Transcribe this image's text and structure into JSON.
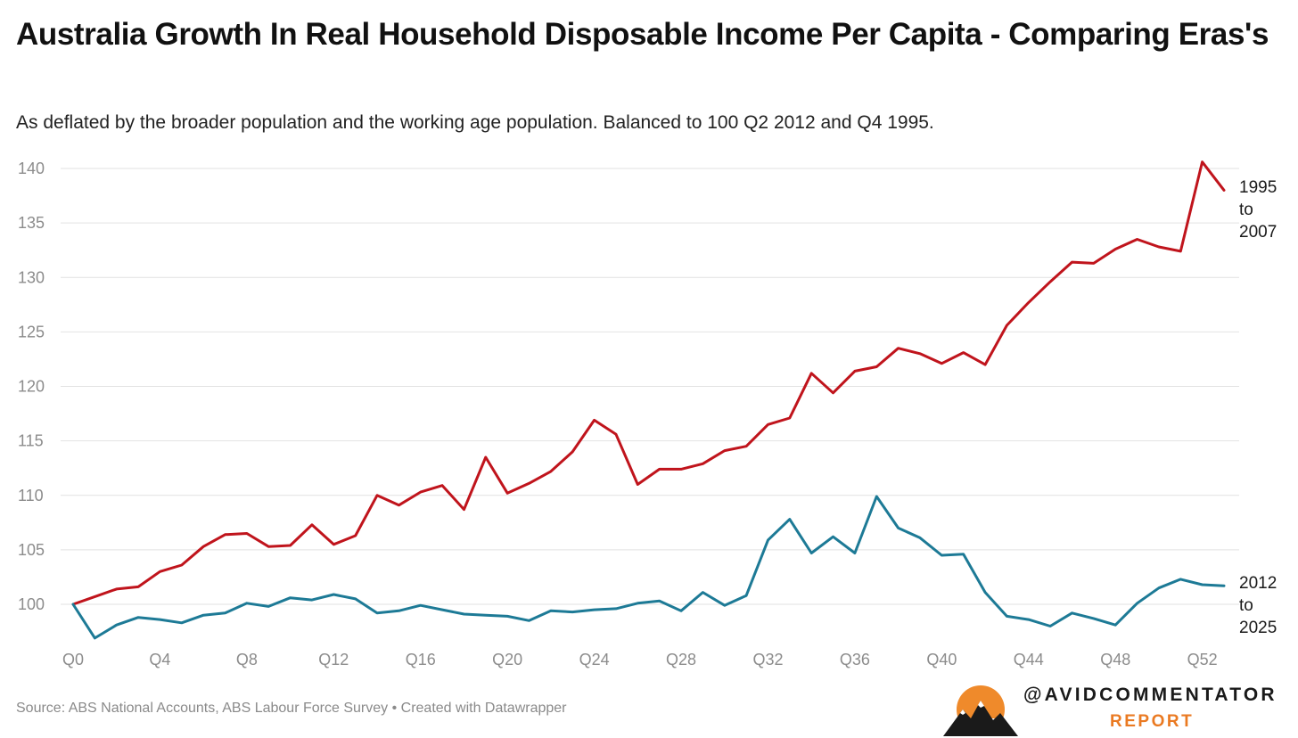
{
  "header": {
    "title": "Australia Growth In Real Household Disposable Income Per Capita - Comparing Eras's",
    "subtitle": "As deflated by the broader population and the working age population. Balanced to 100 Q2 2012 and Q4 1995."
  },
  "footer": {
    "source": "Source: ABS National Accounts, ABS Labour Force Survey",
    "separator": "•",
    "credit": "Created with Datawrapper"
  },
  "branding": {
    "handle": "@AVIDCOMMENTATOR",
    "report": "REPORT",
    "icon": "sun-mountain-logo-icon",
    "accent_color": "#ea7a22"
  },
  "chart_data": {
    "type": "line",
    "x_tick_labels": [
      "Q0",
      "Q4",
      "Q8",
      "Q12",
      "Q16",
      "Q20",
      "Q24",
      "Q28",
      "Q32",
      "Q36",
      "Q40",
      "Q44",
      "Q48",
      "Q52"
    ],
    "y_tick_labels": [
      "100",
      "105",
      "110",
      "115",
      "120",
      "125",
      "130",
      "135",
      "140"
    ],
    "y_ticks": [
      100,
      105,
      110,
      115,
      120,
      125,
      130,
      135,
      140
    ],
    "xlim": [
      0,
      53
    ],
    "ylim": [
      97,
      141
    ],
    "grid": true,
    "legend": "direct-labels-right",
    "series": [
      {
        "label_lines": [
          "1995",
          "to",
          "2007"
        ],
        "color": "#c0141c",
        "x": [
          0,
          1,
          2,
          3,
          4,
          5,
          6,
          7,
          8,
          9,
          10,
          11,
          12,
          13,
          14,
          15,
          16,
          17,
          18,
          19,
          20,
          21,
          22,
          23,
          24,
          25,
          26,
          27,
          28,
          29,
          30,
          31,
          32,
          33,
          34,
          35,
          36,
          37,
          38,
          39,
          40,
          41,
          42,
          43,
          44,
          45,
          46,
          47,
          48,
          49,
          50,
          51,
          52,
          53
        ],
        "values": [
          100.0,
          100.7,
          101.4,
          101.6,
          103.0,
          103.6,
          105.3,
          106.4,
          106.5,
          105.3,
          105.4,
          107.3,
          105.5,
          106.3,
          110.0,
          109.1,
          110.3,
          110.9,
          108.7,
          113.5,
          110.2,
          111.1,
          112.2,
          114.0,
          116.9,
          115.6,
          111.0,
          112.4,
          112.4,
          112.9,
          114.1,
          114.5,
          116.5,
          117.1,
          121.2,
          119.4,
          121.4,
          121.8,
          123.5,
          123.0,
          122.1,
          123.1,
          122.0,
          125.6,
          127.7,
          129.6,
          131.4,
          131.3,
          132.6,
          133.5,
          132.8,
          132.4,
          140.6,
          138.0
        ]
      },
      {
        "label_lines": [
          "2012",
          "to",
          "2025"
        ],
        "color": "#1d7a96",
        "x": [
          0,
          1,
          2,
          3,
          4,
          5,
          6,
          7,
          8,
          9,
          10,
          11,
          12,
          13,
          14,
          15,
          16,
          17,
          18,
          19,
          20,
          21,
          22,
          23,
          24,
          25,
          26,
          27,
          28,
          29,
          30,
          31,
          32,
          33,
          34,
          35,
          36,
          37,
          38,
          39,
          40,
          41,
          42,
          43,
          44,
          45,
          46,
          47,
          48,
          49,
          50,
          51,
          52,
          53
        ],
        "values": [
          100.0,
          96.9,
          98.1,
          98.8,
          98.6,
          98.3,
          99.0,
          99.2,
          100.1,
          99.8,
          100.6,
          100.4,
          100.9,
          100.5,
          99.2,
          99.4,
          99.9,
          99.5,
          99.1,
          99.0,
          98.9,
          98.5,
          99.4,
          99.3,
          99.5,
          99.6,
          100.1,
          100.3,
          99.4,
          101.1,
          99.9,
          100.8,
          105.9,
          107.8,
          104.7,
          106.2,
          104.7,
          109.9,
          107.0,
          106.1,
          104.5,
          104.6,
          101.1,
          98.9,
          98.6,
          98.0,
          99.2,
          98.7,
          98.1,
          100.1,
          101.5,
          102.3,
          101.8,
          101.7
        ]
      }
    ]
  }
}
